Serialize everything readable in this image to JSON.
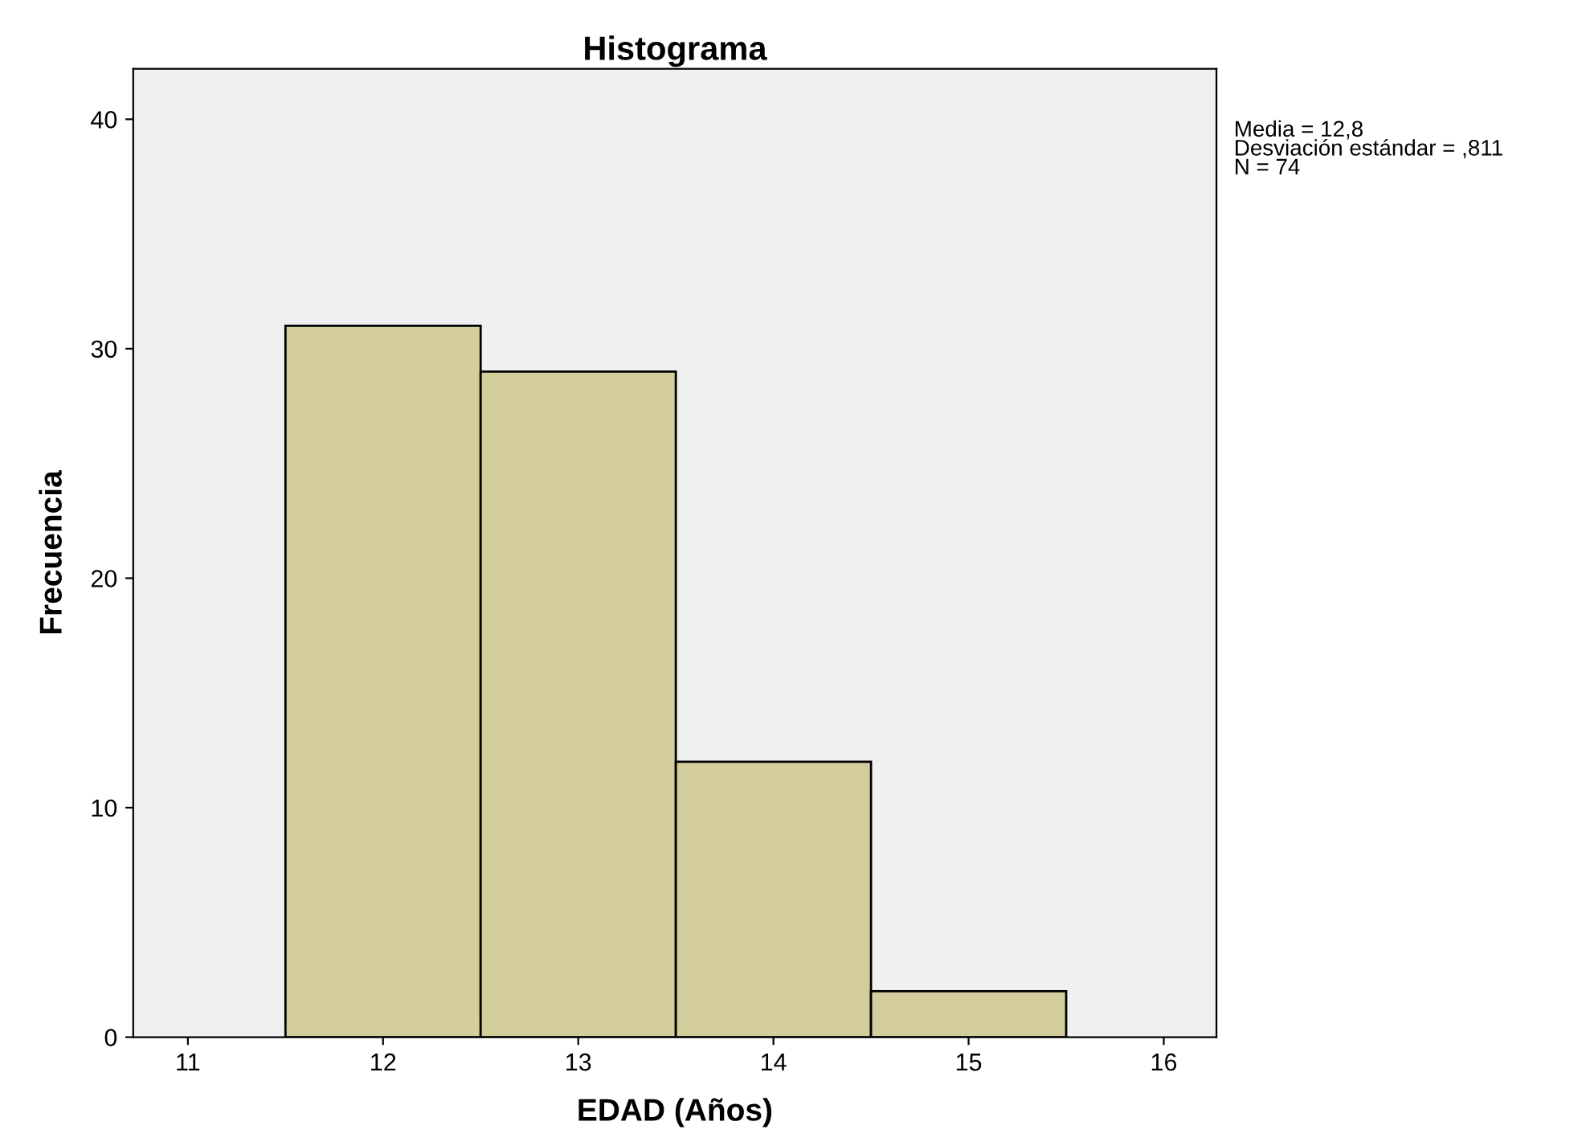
{
  "chart_data": {
    "type": "histogram",
    "title": "Histograma",
    "xlabel": "EDAD (Años)",
    "ylabel": "Frecuencia",
    "bins": [
      11.5,
      12.5,
      13.5,
      14.5,
      15.5
    ],
    "values": [
      31,
      29,
      12,
      2
    ],
    "color": "#d3ce9b",
    "xlim": [
      10.72,
      16.27
    ],
    "xticks": [
      11,
      12,
      13,
      14,
      15,
      16
    ],
    "ylim": [
      0,
      42.2
    ],
    "yticks": [
      0,
      10,
      20,
      30,
      40
    ],
    "grid": false,
    "legend": false,
    "annotations": [
      "Media = 12,8",
      "Desviación estándar = ,811",
      "N = 74"
    ]
  }
}
